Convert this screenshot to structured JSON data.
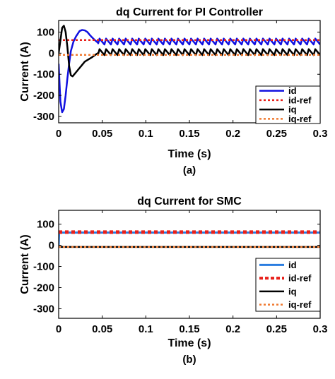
{
  "chart_data": [
    {
      "type": "line",
      "title": "dq Current for PI Controller",
      "xlabel": "Time (s)",
      "ylabel": "Current (A)",
      "caption": "(a)",
      "xlim": [
        0,
        0.3
      ],
      "ylim": [
        -330,
        155
      ],
      "xticks": [
        0,
        0.05,
        0.1,
        0.15,
        0.2,
        0.25,
        0.3
      ],
      "xtick_labels": [
        "0",
        "0.05",
        "0.1",
        "0.15",
        "0.2",
        "0.25",
        "0.3"
      ],
      "yticks": [
        100,
        0,
        -100,
        -200,
        -300
      ],
      "ytick_labels": [
        "100",
        "0",
        "-100",
        "-200",
        "-300"
      ],
      "grid": false,
      "legend_position": "lower-right",
      "series": [
        {
          "name": "id",
          "color": "#1010e0",
          "style": "solid",
          "width": 2.5,
          "x": [
            0,
            0.002,
            0.004,
            0.006,
            0.008,
            0.01,
            0.012,
            0.014,
            0.017,
            0.02,
            0.024,
            0.027,
            0.03,
            0.033,
            0.036,
            0.039,
            0.042,
            0.045
          ],
          "y": [
            -50,
            -230,
            -280,
            -265,
            -200,
            -120,
            -50,
            10,
            55,
            80,
            105,
            110,
            108,
            100,
            85,
            72,
            60,
            50
          ],
          "ripple": {
            "start": 0.045,
            "end": 0.3,
            "period": 0.0075,
            "center": 55,
            "amplitude": 14
          }
        },
        {
          "name": "id-ref",
          "color": "#e8201a",
          "style": "dotted",
          "width": 2.5,
          "x": [
            0,
            0.3
          ],
          "y": [
            62,
            62
          ]
        },
        {
          "name": "iq",
          "color": "#000000",
          "style": "solid",
          "width": 2.5,
          "x": [
            0,
            0.002,
            0.004,
            0.006,
            0.008,
            0.01,
            0.012,
            0.014,
            0.016,
            0.019,
            0.022,
            0.026,
            0.03,
            0.034,
            0.038,
            0.042,
            0.045
          ],
          "y": [
            0,
            60,
            120,
            130,
            100,
            30,
            -60,
            -105,
            -110,
            -95,
            -80,
            -60,
            -40,
            -30,
            -20,
            -8,
            0
          ],
          "ripple": {
            "start": 0.045,
            "end": 0.3,
            "period": 0.0075,
            "center": 5,
            "amplitude": 14
          }
        },
        {
          "name": "iq-ref",
          "color": "#f07a30",
          "style": "dotted",
          "width": 2.5,
          "x": [
            0,
            0.3
          ],
          "y": [
            -8,
            -8
          ]
        }
      ]
    },
    {
      "type": "line",
      "title": "dq Current for SMC",
      "xlabel": "Time (s)",
      "ylabel": "Current (A)",
      "caption": "(b)",
      "xlim": [
        0,
        0.3
      ],
      "ylim": [
        -345,
        165
      ],
      "xticks": [
        0,
        0.05,
        0.1,
        0.15,
        0.2,
        0.25,
        0.3
      ],
      "xtick_labels": [
        "0",
        "0.05",
        "0.1",
        "0.15",
        "0.2",
        "0.25",
        "0.3"
      ],
      "yticks": [
        100,
        0,
        -100,
        -200,
        -300
      ],
      "ytick_labels": [
        "100",
        "0",
        "-100",
        "-200",
        "-300"
      ],
      "grid": false,
      "legend_position": "lower-right",
      "series": [
        {
          "name": "id",
          "color": "#2a7de0",
          "style": "solid",
          "width": 3,
          "x": [
            0,
            0.0005,
            0.001,
            0.3
          ],
          "y": [
            0,
            60,
            60,
            60
          ]
        },
        {
          "name": "id-ref",
          "color": "#e8201a",
          "style": "dotted",
          "width": 5,
          "x": [
            0,
            0.3
          ],
          "y": [
            62,
            62
          ]
        },
        {
          "name": "iq",
          "color": "#000000",
          "style": "solid",
          "width": 2.5,
          "x": [
            0,
            0.3
          ],
          "y": [
            -8,
            -8
          ]
        },
        {
          "name": "iq-ref",
          "color": "#f07a30",
          "style": "dotted",
          "width": 2.5,
          "x": [
            0,
            0.3
          ],
          "y": [
            -8,
            -8
          ]
        }
      ]
    }
  ]
}
